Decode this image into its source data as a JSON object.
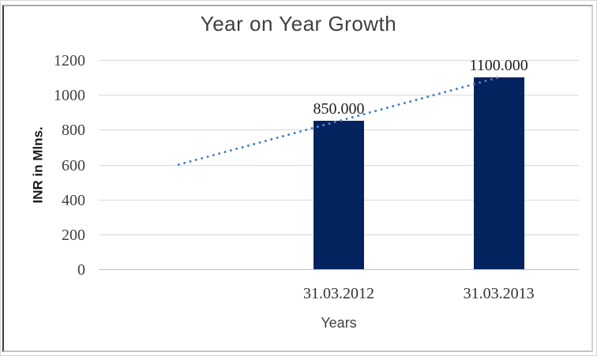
{
  "chart_data": {
    "type": "bar",
    "title": "Year on Year Growth",
    "xlabel": "Years",
    "ylabel": "INR in Mlns.",
    "categories": [
      "31.03.2012",
      "31.03.2013"
    ],
    "values": [
      850,
      1100
    ],
    "data_labels": [
      "850.000",
      "1100.000"
    ],
    "ylim": [
      0,
      1200
    ],
    "yticks": [
      0,
      200,
      400,
      600,
      800,
      1000,
      1200
    ],
    "grid": "horizontal",
    "legend": "none",
    "trendline": {
      "type": "linear",
      "style": "dotted",
      "start_period": 0,
      "start_value": 600,
      "end_period": 2,
      "end_value": 1100
    },
    "colors": {
      "bar": "#02235E",
      "trendline": "#4A82C8",
      "gridline": "#D9D9D9",
      "axis_line": "#BFBFBF",
      "title_text": "#3F3F3F",
      "tick_text": "#404040",
      "label_text": "#1F1F1F"
    }
  }
}
